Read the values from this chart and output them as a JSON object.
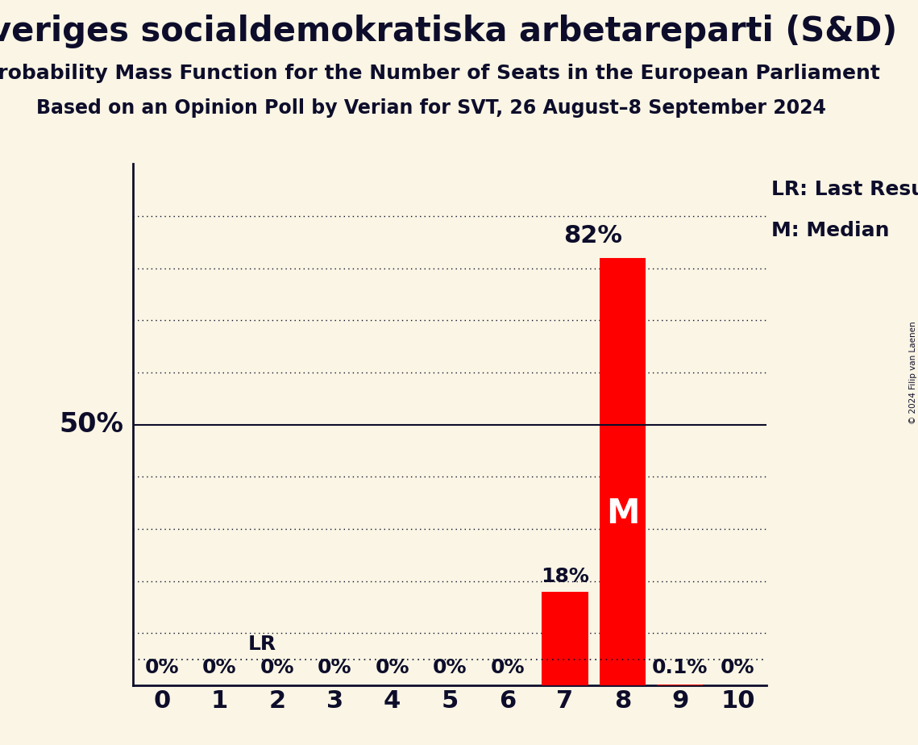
{
  "title": "Sveriges socialdemokratiska arbetareparti (S&D)",
  "subtitle1": "Probability Mass Function for the Number of Seats in the European Parliament",
  "subtitle2": "Based on an Opinion Poll by Verian for SVT, 26 August–8 September 2024",
  "copyright": "© 2024 Filip van Laenen",
  "seats": [
    0,
    1,
    2,
    3,
    4,
    5,
    6,
    7,
    8,
    9,
    10
  ],
  "probabilities": [
    0.0,
    0.0,
    0.0,
    0.0,
    0.0,
    0.0,
    0.0,
    18.0,
    82.0,
    0.1,
    0.0
  ],
  "bar_color": "#ff0000",
  "background_color": "#faf5e4",
  "text_color": "#0d0d2b",
  "bar_labels": [
    "0%",
    "0%",
    "0%",
    "0%",
    "0%",
    "0%",
    "0%",
    "18%",
    "",
    "0.1%",
    "0%"
  ],
  "median_seat": 8,
  "lr_value": 5.0,
  "lr_label": "LR",
  "fifty_pct_line": 50.0,
  "ylim": [
    0,
    100
  ],
  "legend_lr": "LR: Last Result",
  "legend_m": "M: Median",
  "title_fontsize": 30,
  "subtitle_fontsize": 18,
  "bar_label_fontsize": 18,
  "tick_fontsize": 22,
  "fifty_label_fontsize": 22,
  "legend_fontsize": 18,
  "pct_82_fontsize": 22
}
